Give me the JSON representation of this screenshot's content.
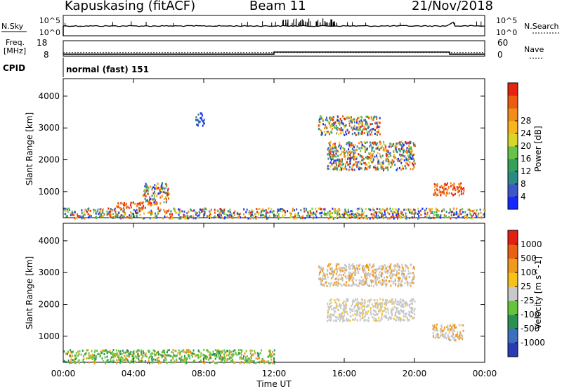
{
  "header": {
    "station": "Kapuskasing (fitACF)",
    "beam": "Beam 11",
    "date": "21/Nov/2018"
  },
  "noise_panel": {
    "left_label": "N.Sky",
    "right_label": "N.Search",
    "ticks_left": [
      "10^5",
      "10^0"
    ],
    "ticks_right": [
      "10^5",
      "10^0"
    ]
  },
  "freq_panel": {
    "left_label_1": "Freq.",
    "left_label_2": "[MHz]",
    "right_label": "Nave",
    "ticks_left": [
      "18",
      "8"
    ],
    "ticks_right": [
      "60",
      "0"
    ],
    "freq_mhz": 10.4,
    "nave_segments": [
      {
        "from_hour": 0,
        "to_hour": 12,
        "nave": 8
      },
      {
        "from_hour": 12,
        "to_hour": 22,
        "nave": 16
      },
      {
        "from_hour": 22,
        "to_hour": 24,
        "nave": 8
      }
    ]
  },
  "cpid": {
    "label": "CPID",
    "value": "normal (fast) 151"
  },
  "x_axis": {
    "ticks": [
      "00:00",
      "04:00",
      "08:00",
      "12:00",
      "16:00",
      "20:00",
      "00:00"
    ],
    "title": "Time UT"
  },
  "chart_data": [
    {
      "type": "heatmap",
      "title": "",
      "xlabel": "Time UT",
      "ylabel": "Slant Range [km]",
      "xlim_hours": [
        0,
        24
      ],
      "ylim_km": [
        180,
        4550
      ],
      "y_ticks": [
        "1000",
        "2000",
        "3000",
        "4000"
      ],
      "colorbar": {
        "title": "Power [dB]",
        "ticks": [
          "4",
          "8",
          "12",
          "16",
          "20",
          "24",
          "28"
        ],
        "colors": [
          "#1428ff",
          "#3e56c8",
          "#2c8a86",
          "#34a058",
          "#69c34a",
          "#d7d72a",
          "#f7b51e",
          "#f28d18",
          "#ec5c10",
          "#e42410"
        ]
      },
      "regions": [
        {
          "t0": 0.0,
          "t1": 24.0,
          "r0": 180,
          "r1": 500,
          "value": "mixed"
        },
        {
          "t0": 3.0,
          "t1": 5.5,
          "r0": 500,
          "r1": 700,
          "value": "red"
        },
        {
          "t0": 4.5,
          "t1": 6.0,
          "r0": 700,
          "r1": 1300,
          "value": "mixed"
        },
        {
          "t0": 7.5,
          "t1": 8.0,
          "r0": 3100,
          "r1": 3500,
          "value": "blue"
        },
        {
          "t0": 14.5,
          "t1": 18.0,
          "r0": 2800,
          "r1": 3400,
          "value": "mixed"
        },
        {
          "t0": 15.0,
          "t1": 20.0,
          "r0": 1700,
          "r1": 2600,
          "value": "mixed"
        },
        {
          "t0": 21.0,
          "t1": 22.8,
          "r0": 900,
          "r1": 1300,
          "value": "red"
        }
      ]
    },
    {
      "type": "heatmap",
      "title": "",
      "xlabel": "Time UT",
      "ylabel": "Slant Range [km]",
      "xlim_hours": [
        0,
        24
      ],
      "ylim_km": [
        180,
        4550
      ],
      "y_ticks": [
        "1000",
        "2000",
        "3000",
        "4000"
      ],
      "colorbar": {
        "title": "Velocity [m s^-1]",
        "ticks": [
          "1000",
          "500",
          "100",
          "25",
          "-25",
          "-100",
          "-500",
          "-1000"
        ],
        "colors": [
          "#2a3cb4",
          "#3d6fbe",
          "#2b9055",
          "#66c43c",
          "#c8c8c8",
          "#f5c21a",
          "#f1991c",
          "#ea6013",
          "#e21f10"
        ]
      },
      "regions": [
        {
          "t0": 0.0,
          "t1": 12.0,
          "r0": 180,
          "r1": 600,
          "value": "green/orange"
        },
        {
          "t0": 14.5,
          "t1": 20.0,
          "r0": 2600,
          "r1": 3300,
          "value": "grey/orange"
        },
        {
          "t0": 15.0,
          "t1": 20.0,
          "r0": 1500,
          "r1": 2200,
          "value": "grey"
        },
        {
          "t0": 21.0,
          "t1": 22.8,
          "r0": 900,
          "r1": 1400,
          "value": "grey/orange"
        }
      ]
    }
  ]
}
